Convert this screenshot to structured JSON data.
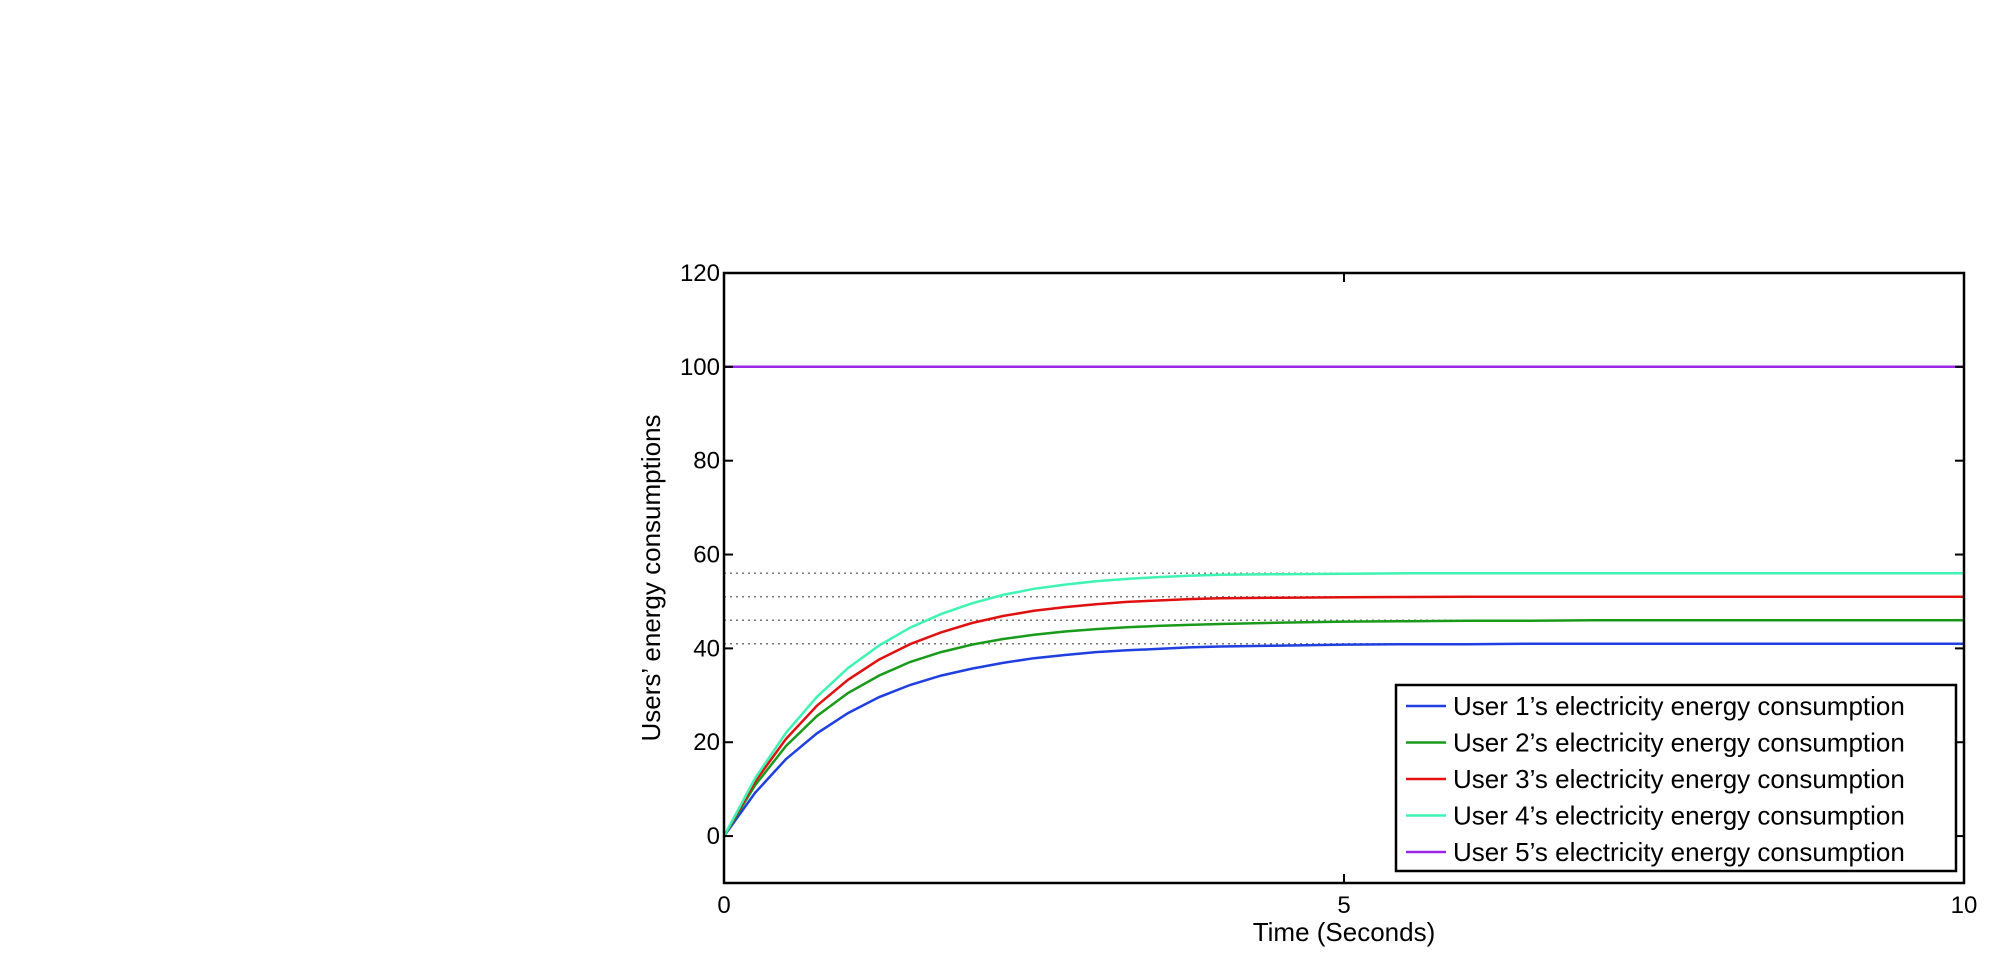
{
  "chart_data": {
    "type": "line",
    "title": "",
    "xlabel": "Time (Seconds)",
    "ylabel": "Users’ energy consumptions",
    "xlim": [
      0,
      10
    ],
    "ylim": [
      -10,
      120
    ],
    "xticks": [
      0,
      5,
      10
    ],
    "yticks": [
      0,
      20,
      40,
      60,
      80,
      100,
      120
    ],
    "grid": false,
    "legend_position": "bottom-right",
    "x": [
      0,
      0.25,
      0.5,
      0.75,
      1,
      1.25,
      1.5,
      1.75,
      2,
      2.25,
      2.5,
      2.75,
      3,
      3.25,
      3.5,
      3.75,
      4,
      4.5,
      5,
      5.5,
      6,
      6.5,
      7,
      7.5,
      8,
      8.5,
      9,
      9.5,
      10
    ],
    "series": [
      {
        "name": "User 1’s electricity energy consumption",
        "color": "#1f3fe0",
        "values": [
          0,
          9.2,
          16.4,
          21.9,
          26.2,
          29.6,
          32.2,
          34.2,
          35.7,
          36.9,
          37.9,
          38.6,
          39.2,
          39.6,
          39.9,
          40.2,
          40.4,
          40.6,
          40.8,
          40.9,
          40.9,
          41.0,
          41.0,
          41.0,
          41.0,
          41.0,
          41.0,
          41.0,
          41.0
        ]
      },
      {
        "name": "User 2’s electricity energy consumption",
        "color": "#1a9a1a",
        "values": [
          0,
          10.8,
          19.2,
          25.6,
          30.5,
          34.2,
          37.1,
          39.2,
          40.8,
          42.0,
          42.9,
          43.6,
          44.1,
          44.5,
          44.8,
          45.0,
          45.2,
          45.5,
          45.7,
          45.8,
          45.9,
          45.9,
          46.0,
          46.0,
          46.0,
          46.0,
          46.0,
          46.0,
          46.0
        ]
      },
      {
        "name": "User 3’s electricity energy consumption",
        "color": "#e01010",
        "values": [
          0,
          11.6,
          20.7,
          27.8,
          33.3,
          37.6,
          40.9,
          43.4,
          45.4,
          46.9,
          48.0,
          48.8,
          49.4,
          49.9,
          50.2,
          50.5,
          50.7,
          50.8,
          50.9,
          50.95,
          51.0,
          51.0,
          51.0,
          51.0,
          51.0,
          51.0,
          51.0,
          51.0,
          51.0
        ]
      },
      {
        "name": "User 4’s electricity energy consumption",
        "color": "#3ff3b3",
        "values": [
          0,
          12.3,
          22.0,
          29.7,
          35.8,
          40.6,
          44.4,
          47.3,
          49.6,
          51.4,
          52.7,
          53.6,
          54.3,
          54.8,
          55.2,
          55.5,
          55.7,
          55.8,
          55.9,
          56.0,
          56.0,
          56.0,
          56.0,
          56.0,
          56.0,
          56.0,
          56.0,
          56.0,
          56.0
        ]
      },
      {
        "name": "User 5’s electricity energy consumption",
        "color": "#9a28e6",
        "values": [
          100,
          100,
          100,
          100,
          100,
          100,
          100,
          100,
          100,
          100,
          100,
          100,
          100,
          100,
          100,
          100,
          100,
          100,
          100,
          100,
          100,
          100,
          100,
          100,
          100,
          100,
          100,
          100,
          100
        ]
      }
    ],
    "reference_lines": [
      {
        "y": 41.0,
        "style": "dotted",
        "color": "#777777"
      },
      {
        "y": 46.0,
        "style": "dotted",
        "color": "#777777"
      },
      {
        "y": 51.0,
        "style": "dotted",
        "color": "#777777"
      },
      {
        "y": 56.0,
        "style": "dotted",
        "color": "#777777"
      }
    ]
  }
}
